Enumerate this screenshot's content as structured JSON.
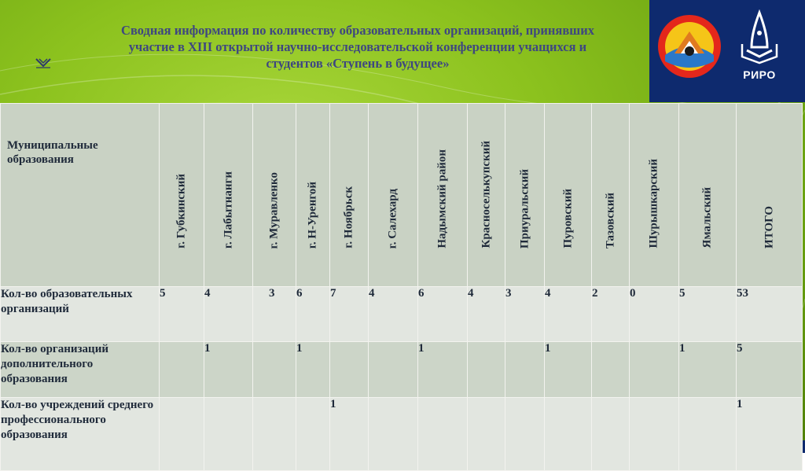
{
  "title": {
    "line1": "Сводная информация по количеству образовательных организаций, принявших",
    "line2": "участие в  XIII открытой научно-исследовательской конференции учащихся и",
    "line3": "студентов «Ступень в будущее»"
  },
  "logos": {
    "left": "stupen-v-budushchee-logo",
    "right": "riro-logo",
    "right_caption": "РИРО"
  },
  "table": {
    "corner": "Муниципальные образования",
    "columns": [
      "г. Губкинский",
      "г. Лабытнанги",
      "г. Муравленко",
      "г. Н-Уренгой",
      "г. Ноябрьск",
      "г. Салехард",
      "Надымский район",
      "Красноселькупский",
      "Приуральский",
      "Пуровский",
      "Тазовский",
      "Шурышкарский",
      "Ямальский",
      "ИТОГО"
    ],
    "rows": [
      {
        "label": "Кол-во образовательных организаций",
        "values": [
          "5",
          "4",
          "3",
          "6",
          "7",
          "4",
          "6",
          "4",
          "3",
          "4",
          "2",
          "0",
          "5",
          "53"
        ]
      },
      {
        "label": "Кол-во организаций дополнительного образования",
        "values": [
          "",
          "1",
          "",
          "1",
          "",
          "",
          "1",
          "",
          "",
          "1",
          "",
          "",
          "1",
          "5"
        ]
      },
      {
        "label": "Кол-во  учреждений среднего профессионального образования",
        "values": [
          "",
          "",
          "",
          "",
          "1",
          "",
          "",
          "",
          "",
          "",
          "",
          "",
          "",
          "1"
        ]
      }
    ]
  },
  "colors": {
    "green": "#8cc21e",
    "navy": "#0e2a6e",
    "title": "#3e4780"
  }
}
